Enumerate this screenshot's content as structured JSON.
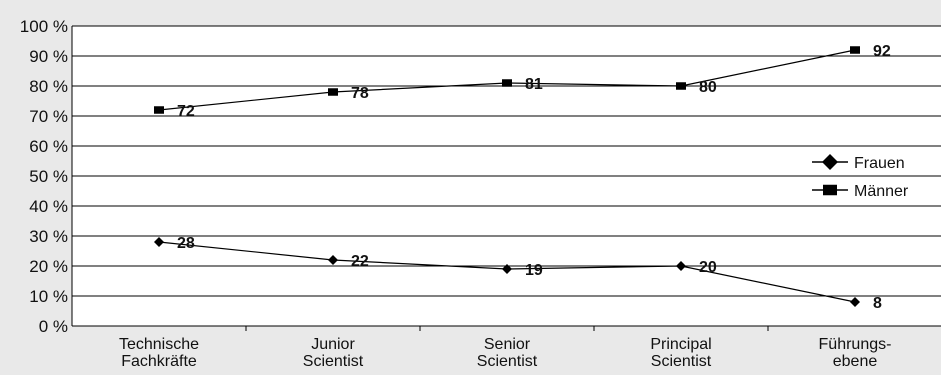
{
  "chart_data": {
    "type": "line",
    "categories": [
      [
        "Technische",
        "Fachkräfte"
      ],
      [
        "Junior",
        "Scientist"
      ],
      [
        "Senior",
        "Scientist"
      ],
      [
        "Principal",
        "Scientist"
      ],
      [
        "Führungs-",
        "ebene"
      ]
    ],
    "series": [
      {
        "name": "Frauen",
        "values": [
          28,
          22,
          19,
          20,
          8
        ],
        "marker": "diamond",
        "color": "#000000"
      },
      {
        "name": "Männer",
        "values": [
          72,
          78,
          81,
          80,
          92
        ],
        "marker": "square",
        "color": "#000000"
      }
    ],
    "ylim": [
      0,
      100
    ],
    "yticks": [
      0,
      10,
      20,
      30,
      40,
      50,
      60,
      70,
      80,
      90,
      100
    ],
    "ytick_labels": [
      "0 %",
      "10 %",
      "20 %",
      "30 %",
      "40 %",
      "50 %",
      "60 %",
      "70 %",
      "80 %",
      "90 %",
      "100 %"
    ],
    "grid": true,
    "legend": "right",
    "colors": {
      "background": "#e9e9e9",
      "plot_background": "#ffffff",
      "line": "#000000"
    }
  }
}
